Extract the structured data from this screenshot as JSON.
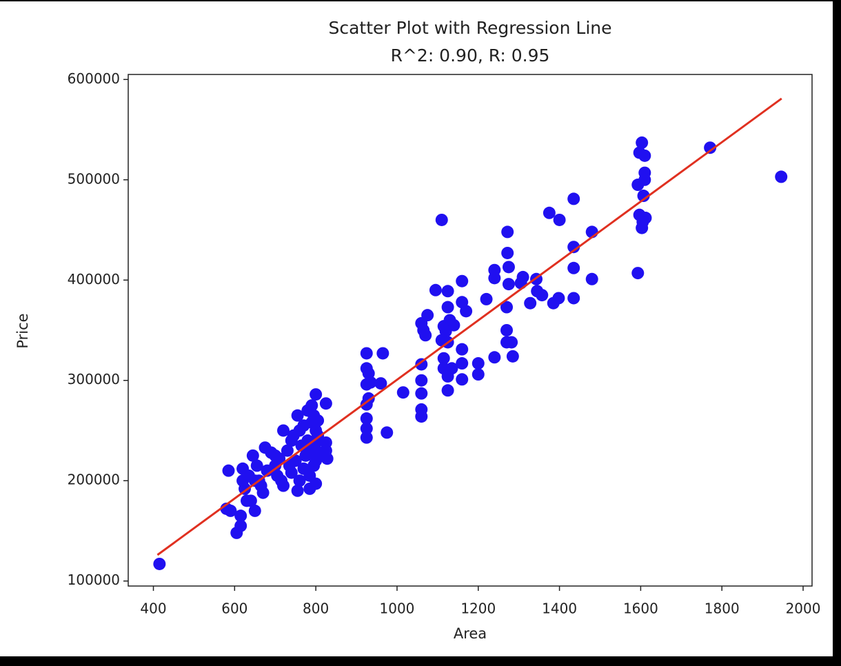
{
  "chart_data": {
    "type": "scatter",
    "title": "Scatter Plot with Regression Line",
    "subtitle": "R^2: 0.90, R: 0.95",
    "x_label": "Area",
    "y_label": "Price",
    "xlim": [
      338,
      2022
    ],
    "ylim": [
      95000,
      605000
    ],
    "xticks": [
      400,
      600,
      800,
      1000,
      1200,
      1400,
      1600,
      1800,
      2000
    ],
    "yticks": [
      100000,
      200000,
      300000,
      400000,
      500000,
      600000
    ],
    "series": [
      {
        "color": "#2010f0",
        "x": [
          415,
          1946,
          1771,
          1603,
          1597,
          1610,
          1610,
          1610,
          1593,
          1607,
          1597,
          1612,
          1605,
          1603,
          1593,
          1435,
          1435,
          1435,
          1435,
          1480,
          1480,
          1400,
          1375,
          1385,
          1398,
          1357,
          1343,
          1345,
          1328,
          1310,
          1305,
          1272,
          1272,
          1275,
          1275,
          1270,
          1270,
          1270,
          1282,
          1285,
          1240,
          1240,
          1240,
          1220,
          1200,
          1200,
          1110,
          1095,
          1125,
          1160,
          1160,
          1170,
          1125,
          1115,
          1130,
          1140,
          1120,
          1110,
          1125,
          1115,
          1135,
          1115,
          1125,
          1125,
          1160,
          1160,
          1160,
          1075,
          1060,
          1065,
          1070,
          1060,
          1060,
          1060,
          1060,
          1060,
          1015,
          925,
          925,
          930,
          925,
          935,
          925,
          960,
          965,
          925,
          925,
          925,
          975,
          930,
          585,
          580,
          590,
          605,
          615,
          615,
          620,
          620,
          625,
          635,
          640,
          645,
          650,
          655,
          660,
          665,
          670,
          675,
          680,
          690,
          700,
          705,
          710,
          715,
          720,
          720,
          730,
          735,
          740,
          745,
          750,
          755,
          755,
          760,
          765,
          770,
          770,
          775,
          780,
          780,
          785,
          785,
          790,
          790,
          790,
          795,
          795,
          800,
          800,
          800,
          800,
          800,
          805,
          805,
          810,
          825,
          825,
          825,
          828,
          630,
          650,
          700,
          740,
          760
        ],
        "values": [
          117000,
          503000,
          532000,
          537000,
          527000,
          524000,
          507000,
          500000,
          495000,
          484000,
          465000,
          462000,
          458000,
          452000,
          407000,
          481000,
          433000,
          412000,
          382000,
          448000,
          401000,
          460000,
          467000,
          377000,
          382000,
          385000,
          401000,
          389000,
          377000,
          403000,
          397000,
          448000,
          427000,
          413000,
          396000,
          373000,
          350000,
          338000,
          338000,
          324000,
          410000,
          402000,
          323000,
          381000,
          317000,
          306000,
          460000,
          390000,
          389000,
          399000,
          378000,
          369000,
          373000,
          354000,
          360000,
          355000,
          349000,
          340000,
          338000,
          322000,
          312000,
          312000,
          304000,
          290000,
          331000,
          317000,
          301000,
          365000,
          357000,
          350000,
          345000,
          316000,
          300000,
          287000,
          271000,
          264000,
          288000,
          327000,
          312000,
          307000,
          296000,
          298000,
          276000,
          297000,
          327000,
          262000,
          252000,
          243000,
          248000,
          282000,
          210000,
          172000,
          170000,
          148000,
          155000,
          165000,
          212000,
          200000,
          192000,
          205000,
          180000,
          225000,
          170000,
          215000,
          200000,
          195000,
          188000,
          233000,
          210000,
          228000,
          215000,
          205000,
          222000,
          200000,
          250000,
          195000,
          230000,
          215000,
          208000,
          245000,
          220000,
          190000,
          265000,
          200000,
          235000,
          255000,
          212000,
          225000,
          270000,
          240000,
          205000,
          192000,
          275000,
          258000,
          230000,
          265000,
          215000,
          286000,
          250000,
          238000,
          220000,
          197000,
          260000,
          245000,
          228000,
          277000,
          238000,
          230000,
          222000,
          180000,
          200000,
          225000,
          240000,
          250000
        ]
      }
    ],
    "regression_line": {
      "type": "line",
      "color": "#e03020",
      "x": [
        410,
        1947
      ],
      "values": [
        126000,
        581000
      ]
    }
  }
}
